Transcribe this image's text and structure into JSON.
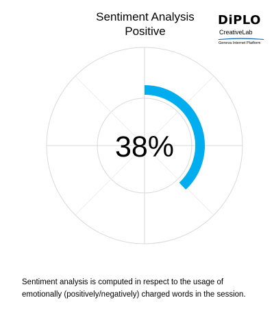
{
  "header": {
    "title_line1": "Sentiment Analysis",
    "title_line2": "Positive"
  },
  "logo": {
    "wordmark": "DiPLO",
    "subtitle": "CreativeLab",
    "tagline": "Geneva Internet Platform",
    "bar_color": "#0a64b4"
  },
  "gauge": {
    "value_text": "38%",
    "fraction": 0.38,
    "arc_color": "#00aeef",
    "grid_color": "#d9d9d9"
  },
  "footer": {
    "line1": "Sentiment analysis is computed in respect to the usage of",
    "line2": "emotionally (positively/negatively) charged words in the session."
  }
}
